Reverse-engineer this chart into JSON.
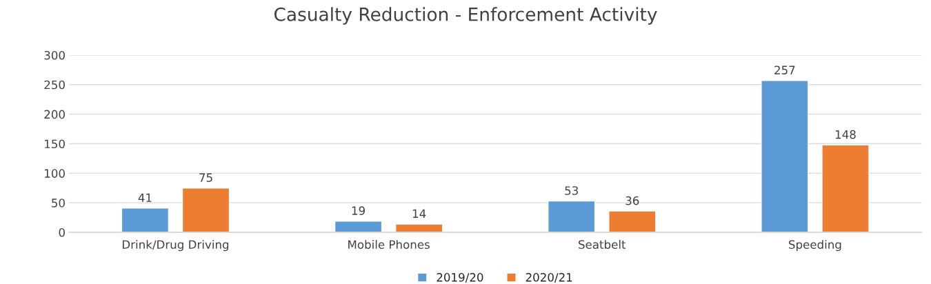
{
  "chart_data": {
    "type": "bar",
    "title": "Casualty Reduction - Enforcement Activity",
    "categories": [
      "Drink/Drug Driving",
      "Mobile Phones",
      "Seatbelt",
      "Speeding"
    ],
    "series": [
      {
        "name": "2019/20",
        "color": "#5b9bd5",
        "values": [
          41,
          19,
          53,
          257
        ]
      },
      {
        "name": "2020/21",
        "color": "#ed7d31",
        "values": [
          75,
          14,
          36,
          148
        ]
      }
    ],
    "ylim": [
      0,
      300
    ],
    "yticks": [
      0,
      50,
      100,
      150,
      200,
      250,
      300
    ],
    "grid": "y",
    "legend": "bottom",
    "data_labels": true
  }
}
